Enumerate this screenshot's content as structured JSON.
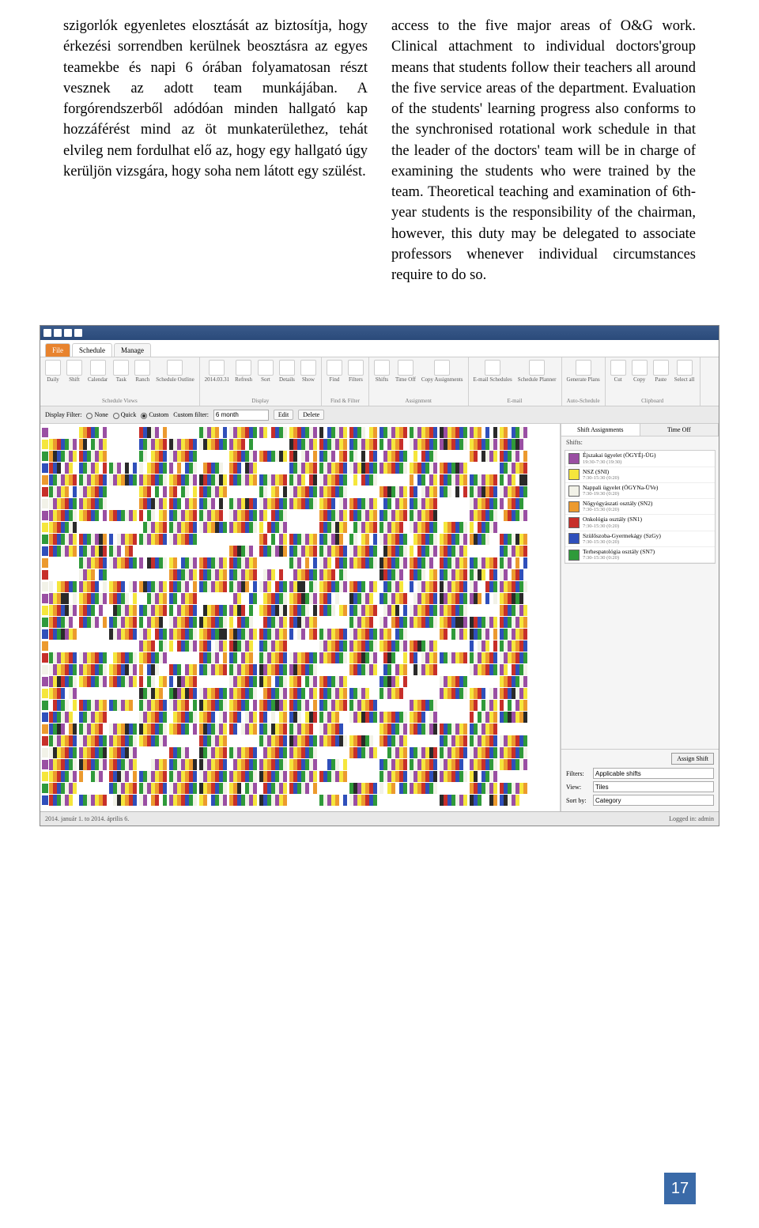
{
  "page": {
    "number": "17"
  },
  "text": {
    "left": "szigorlók egyenletes elosztását az biztosítja, hogy érkezési sorrendben kerülnek beosztásra az egyes teamekbe és napi 6 órában folyamatosan részt vesznek az adott team munkájában. A forgórendszerből adódóan minden hallgató kap hozzáférést mind az öt munkaterülethez, tehát elvileg nem fordulhat elő az, hogy egy hallgató úgy kerüljön vizsgára, hogy soha nem látott egy szülést.",
    "right": "access to the five major areas of O&G work. Clinical attachment to individual doctors'group means that students follow their teachers all around the five service areas of the department. Evaluation of the students' learning progress also conforms to the synchronised rotational work schedule in that the leader of the doctors' team will be in charge of examining the students who were trained by the team. Theoretical teaching and examination of 6th-year students is the responsibility of the chairman, however, this duty may be delegated to associate professors whenever individual circumstances require to do so."
  },
  "app": {
    "ribbon": {
      "file": "File",
      "tabs": [
        "Schedule",
        "Manage"
      ],
      "groups": [
        {
          "title": "Schedule Views",
          "items": [
            "Daily",
            "Shift",
            "Calendar",
            "Task",
            "Ranch",
            "Schedule Outline"
          ]
        },
        {
          "title": "Display",
          "items": [
            "2014.03.31",
            "Refresh",
            "Sort",
            "Details",
            "Show"
          ]
        },
        {
          "title": "Find & Filter",
          "items": [
            "Find",
            "Filters"
          ]
        },
        {
          "title": "Assignment",
          "items": [
            "Shifts",
            "Time Off",
            "Copy Assignments"
          ]
        },
        {
          "title": "E-mail",
          "items": [
            "E-mail Schedules",
            "Schedule Planner"
          ]
        },
        {
          "title": "Auto-Schedule",
          "items": [
            "Generate Plans"
          ]
        },
        {
          "title": "Clipboard",
          "items": [
            "Cut",
            "Copy",
            "Paste",
            "Select all"
          ]
        }
      ]
    },
    "toolbar": {
      "displayFilter": "Display Filter:",
      "options": [
        "None",
        "Quick",
        "Custom"
      ],
      "customText": "Custom filter:",
      "customValue": "6 month",
      "buttons": [
        "Edit",
        "Delete"
      ]
    },
    "sidebar": {
      "tabs": [
        "Shift Assignments",
        "Time Off"
      ],
      "section": "Shifts:",
      "items": [
        {
          "color": "#9a4fa3",
          "label": "Éjszakai ügyelet (ÖGYÉj-ÜG)",
          "sub": "19:30-7:30 (19:30)"
        },
        {
          "color": "#f5e63c",
          "label": "NSZ (SNI)",
          "sub": "7:30-15:30 (0:20)"
        },
        {
          "color": "#f2f2e8",
          "label": "Nappali ügyelet (ÖGYNa-ÜVe)",
          "sub": "7:30-19:30 (0:20)"
        },
        {
          "color": "#ec9a2e",
          "label": "Nőgyógyászati osztály (SN2)",
          "sub": "7:30-15:30 (0:20)"
        },
        {
          "color": "#c72f2a",
          "label": "Onkológia osztály (SN1)",
          "sub": "7:30-15:30 (0:20)"
        },
        {
          "color": "#2f4fbb",
          "label": "Szülőszoba-Gyermekágy (SzGy)",
          "sub": "7:30-15:30 (0:20)"
        },
        {
          "color": "#2f9a3a",
          "label": "Terhespatológia osztály (SN7)",
          "sub": "7:30-15:30 (0:20)"
        }
      ],
      "assign": "Assign Shift",
      "fields": {
        "filter": {
          "label": "Filters:",
          "value": "Applicable shifts"
        },
        "view": {
          "label": "View:",
          "value": "Tiles"
        },
        "sort": {
          "label": "Sort by:",
          "value": "Category"
        }
      }
    },
    "status": {
      "left": "2014. január 1. to 2014. április 6.",
      "right": "Logged in: admin"
    },
    "schedule": {
      "palette": {
        "p": "#9a4fa3",
        "y": "#f5e63c",
        "w": "#f2f2e8",
        "o": "#ec9a2e",
        "r": "#c72f2a",
        "b": "#2f4fbb",
        "g": "#2f9a3a",
        "k": "#2a2a2a",
        "_": "#ffffff"
      },
      "rowHeads": [
        "p",
        "y",
        "g",
        "b",
        "o",
        "r",
        "w",
        "p",
        "y",
        "g",
        "b",
        "o",
        "r",
        "w",
        "p",
        "y",
        "g",
        "b",
        "o",
        "r",
        "w",
        "p",
        "y",
        "g",
        "b",
        "o",
        "r",
        "w",
        "p",
        "y",
        "g",
        "b"
      ],
      "cellWidth": 5,
      "groupsPerRow": 16,
      "cellsPerGroup": 7
    }
  }
}
